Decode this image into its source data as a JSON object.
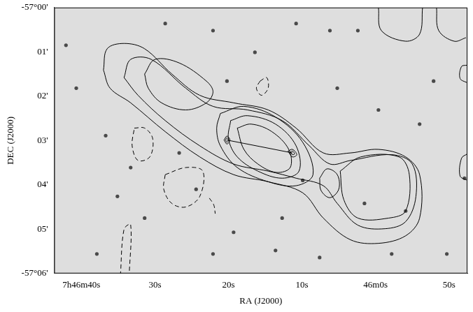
{
  "chart_data": {
    "type": "scatter",
    "x_label": "RA (J2000)",
    "y_label": "DEC (J2000)",
    "xlim": [
      103.7,
      47.5
    ],
    "xticks": [
      {
        "value": 100,
        "label": "7h46m40s"
      },
      {
        "value": 90,
        "label": "30s"
      },
      {
        "value": 80,
        "label": "20s"
      },
      {
        "value": 70,
        "label": "10s"
      },
      {
        "value": 60,
        "label": "46m0s"
      },
      {
        "value": 50,
        "label": "50s"
      }
    ],
    "ylim": [
      6,
      0
    ],
    "yticks": [
      {
        "value": 0,
        "label": "-57°00'"
      },
      {
        "value": 1,
        "label": "01'"
      },
      {
        "value": 2,
        "label": "02'"
      },
      {
        "value": 3,
        "label": "03'"
      },
      {
        "value": 4,
        "label": "04'"
      },
      {
        "value": 5,
        "label": "05'"
      },
      {
        "value": 6,
        "label": "-57°06'"
      }
    ],
    "grid": false,
    "series": [
      {
        "type": "scatter",
        "marker": "circle",
        "color": "#4a4a4a",
        "points": [
          [
            95.1,
            4.26
          ],
          [
            96.7,
            2.89
          ],
          [
            62.4,
            0.52
          ],
          [
            69.9,
            3.9
          ],
          [
            47.9,
            3.85
          ],
          [
            80.2,
            1.66
          ],
          [
            84.4,
            4.1
          ],
          [
            79.3,
            5.07
          ],
          [
            55.9,
            4.59
          ],
          [
            67.6,
            5.64
          ],
          [
            54.0,
            2.63
          ],
          [
            86.7,
            3.28
          ],
          [
            91.4,
            4.75
          ],
          [
            73.6,
            5.48
          ],
          [
            65.2,
            1.82
          ],
          [
            59.6,
            2.31
          ],
          [
            97.9,
            5.56
          ],
          [
            70.8,
            0.36
          ],
          [
            82.1,
            0.52
          ],
          [
            88.6,
            0.36
          ],
          [
            100.7,
            1.82
          ],
          [
            52.1,
            1.66
          ],
          [
            50.3,
            5.56
          ],
          [
            76.4,
            1.01
          ],
          [
            57.8,
            5.56
          ],
          [
            66.2,
            0.52
          ],
          [
            93.3,
            3.61
          ],
          [
            102.1,
            0.85
          ],
          [
            61.5,
            4.42
          ],
          [
            72.7,
            4.75
          ],
          [
            82.1,
            5.56
          ]
        ]
      },
      {
        "type": "line",
        "line_style": "solid",
        "color": "#000000",
        "points": [
          [
            97.0,
            1.41
          ],
          [
            96.5,
            0.93
          ],
          [
            94.2,
            0.81
          ],
          [
            91.4,
            0.93
          ],
          [
            87.7,
            1.5
          ],
          [
            83.9,
            1.98
          ],
          [
            79.3,
            2.15
          ],
          [
            74.6,
            2.31
          ],
          [
            70.8,
            2.72
          ],
          [
            67.1,
            3.28
          ],
          [
            63.4,
            3.28
          ],
          [
            59.6,
            3.2
          ],
          [
            55.9,
            3.37
          ],
          [
            54.0,
            3.77
          ],
          [
            54.0,
            4.75
          ],
          [
            55.9,
            5.15
          ],
          [
            59.6,
            5.32
          ],
          [
            63.4,
            5.24
          ],
          [
            67.1,
            4.75
          ],
          [
            69.9,
            4.18
          ],
          [
            74.6,
            3.93
          ],
          [
            79.3,
            3.77
          ],
          [
            83.9,
            3.37
          ],
          [
            88.6,
            2.8
          ],
          [
            93.3,
            2.15
          ],
          [
            96.1,
            1.82
          ],
          [
            97.0,
            1.41
          ]
        ]
      },
      {
        "type": "line",
        "line_style": "solid",
        "color": "#000000",
        "points": [
          [
            94.2,
            1.58
          ],
          [
            93.3,
            1.17
          ],
          [
            90.5,
            1.17
          ],
          [
            85.8,
            1.82
          ],
          [
            82.1,
            2.23
          ],
          [
            77.4,
            2.31
          ],
          [
            72.7,
            2.55
          ],
          [
            69.0,
            3.12
          ],
          [
            66.2,
            3.53
          ],
          [
            63.4,
            3.45
          ],
          [
            57.8,
            3.32
          ],
          [
            55.0,
            3.53
          ],
          [
            54.5,
            4.26
          ],
          [
            55.9,
            4.83
          ],
          [
            58.7,
            4.99
          ],
          [
            62.4,
            4.91
          ],
          [
            65.2,
            4.42
          ],
          [
            67.1,
            4.02
          ],
          [
            70.8,
            3.85
          ],
          [
            74.6,
            3.69
          ],
          [
            79.3,
            3.53
          ],
          [
            83.9,
            3.12
          ],
          [
            88.6,
            2.55
          ],
          [
            92.3,
            1.98
          ],
          [
            94.2,
            1.58
          ]
        ]
      },
      {
        "type": "line",
        "line_style": "solid",
        "color": "#000000",
        "points": [
          [
            91.4,
            1.5
          ],
          [
            90.0,
            1.17
          ],
          [
            86.7,
            1.25
          ],
          [
            83.0,
            1.66
          ],
          [
            82.1,
            1.9
          ],
          [
            83.0,
            2.15
          ],
          [
            85.8,
            2.31
          ],
          [
            89.1,
            2.15
          ],
          [
            90.9,
            1.82
          ],
          [
            91.4,
            1.5
          ]
        ]
      },
      {
        "type": "line",
        "line_style": "solid",
        "color": "#000000",
        "points": [
          [
            81.1,
            2.39
          ],
          [
            77.9,
            2.23
          ],
          [
            73.6,
            2.47
          ],
          [
            69.9,
            3.04
          ],
          [
            68.5,
            3.77
          ],
          [
            70.8,
            4.02
          ],
          [
            74.6,
            3.93
          ],
          [
            78.8,
            3.61
          ],
          [
            81.1,
            3.12
          ],
          [
            81.6,
            2.72
          ],
          [
            81.1,
            2.39
          ]
        ]
      },
      {
        "type": "line",
        "line_style": "solid",
        "color": "#000000",
        "points": [
          [
            64.8,
            3.69
          ],
          [
            62.0,
            3.37
          ],
          [
            56.8,
            3.37
          ],
          [
            55.4,
            3.77
          ],
          [
            55.9,
            4.59
          ],
          [
            58.2,
            4.75
          ],
          [
            62.4,
            4.75
          ],
          [
            64.3,
            4.34
          ],
          [
            64.8,
            3.69
          ]
        ]
      },
      {
        "type": "line",
        "line_style": "solid",
        "color": "#000000",
        "points": [
          [
            67.6,
            3.85
          ],
          [
            66.6,
            3.64
          ],
          [
            65.2,
            3.77
          ],
          [
            65.0,
            4.1
          ],
          [
            66.2,
            4.29
          ],
          [
            67.4,
            4.13
          ],
          [
            67.6,
            3.85
          ]
        ]
      },
      {
        "type": "line",
        "line_style": "solid",
        "color": "#000000",
        "points": [
          [
            79.7,
            2.55
          ],
          [
            77.4,
            2.44
          ],
          [
            73.6,
            2.63
          ],
          [
            70.8,
            3.12
          ],
          [
            70.4,
            3.69
          ],
          [
            72.7,
            3.85
          ],
          [
            76.0,
            3.69
          ],
          [
            78.8,
            3.37
          ],
          [
            80.0,
            2.96
          ],
          [
            79.7,
            2.55
          ]
        ]
      },
      {
        "type": "line",
        "line_style": "solid",
        "color": "#000000",
        "points": [
          [
            78.8,
            2.72
          ],
          [
            76.9,
            2.63
          ],
          [
            74.1,
            2.8
          ],
          [
            71.8,
            3.2
          ],
          [
            71.6,
            3.61
          ],
          [
            73.5,
            3.72
          ],
          [
            76.0,
            3.53
          ],
          [
            77.9,
            3.2
          ],
          [
            78.8,
            2.72
          ]
        ]
      },
      {
        "type": "line",
        "line_style": "solid",
        "color": "#000000",
        "points": [
          [
            80.6,
            2.99
          ],
          [
            80.2,
            2.9
          ],
          [
            79.8,
            2.99
          ],
          [
            80.2,
            3.08
          ],
          [
            80.6,
            2.99
          ]
        ]
      },
      {
        "type": "line",
        "line_style": "solid",
        "color": "#000000",
        "points": [
          [
            80.4,
            2.99
          ],
          [
            80.2,
            2.94
          ],
          [
            80.0,
            2.99
          ],
          [
            80.2,
            3.04
          ],
          [
            80.4,
            2.99
          ]
        ]
      },
      {
        "type": "line",
        "line_style": "solid",
        "color": "#000000",
        "points": [
          [
            71.9,
            3.24
          ],
          [
            71.3,
            3.2
          ],
          [
            70.7,
            3.32
          ],
          [
            71.3,
            3.37
          ],
          [
            71.9,
            3.24
          ]
        ]
      },
      {
        "type": "line",
        "line_style": "solid",
        "color": "#000000",
        "points": [
          [
            71.6,
            3.26
          ],
          [
            71.3,
            3.24
          ],
          [
            71.0,
            3.3
          ],
          [
            71.3,
            3.32
          ],
          [
            71.6,
            3.26
          ]
        ]
      },
      {
        "type": "line",
        "line_style": "solid",
        "color": "#000000",
        "points": [
          [
            80.2,
            2.99
          ],
          [
            71.3,
            3.28
          ]
        ]
      },
      {
        "type": "line",
        "line_style": "solid",
        "color": "#000000",
        "points": [
          [
            59.6,
            0
          ],
          [
            59.2,
            0.52
          ],
          [
            55.9,
            0.76
          ],
          [
            54.0,
            0.6
          ],
          [
            53.6,
            0
          ]
        ]
      },
      {
        "type": "line",
        "line_style": "solid",
        "color": "#000000",
        "points": [
          [
            51.7,
            0
          ],
          [
            51.4,
            0.52
          ],
          [
            49.3,
            0.76
          ],
          [
            47.7,
            0.68
          ]
        ]
      },
      {
        "type": "line",
        "line_style": "solid",
        "color": "#000000",
        "points": [
          [
            47.5,
            1.3
          ],
          [
            48.3,
            1.33
          ],
          [
            48.5,
            1.6
          ],
          [
            47.5,
            1.7
          ]
        ]
      },
      {
        "type": "line",
        "line_style": "solid",
        "color": "#000000",
        "points": [
          [
            47.5,
            3.3
          ],
          [
            48.3,
            3.4
          ],
          [
            48.5,
            3.8
          ],
          [
            47.5,
            3.9
          ]
        ]
      },
      {
        "type": "line",
        "line_style": "dashed",
        "color": "#000000",
        "points": [
          [
            92.8,
            2.72
          ],
          [
            91.4,
            2.72
          ],
          [
            90.3,
            2.96
          ],
          [
            90.7,
            3.37
          ],
          [
            92.3,
            3.45
          ],
          [
            93.1,
            3.12
          ],
          [
            92.8,
            2.72
          ]
        ]
      },
      {
        "type": "line",
        "line_style": "dashed",
        "color": "#000000",
        "points": [
          [
            88.6,
            3.77
          ],
          [
            85.8,
            3.61
          ],
          [
            83.5,
            3.69
          ],
          [
            83.9,
            4.26
          ],
          [
            85.8,
            4.5
          ],
          [
            87.7,
            4.42
          ],
          [
            88.8,
            4.1
          ],
          [
            88.6,
            3.77
          ]
        ]
      },
      {
        "type": "line",
        "line_style": "dashed",
        "color": "#000000",
        "points": [
          [
            75.7,
            1.66
          ],
          [
            74.8,
            1.58
          ],
          [
            74.6,
            1.82
          ],
          [
            75.5,
            1.98
          ],
          [
            76.2,
            1.82
          ],
          [
            75.7,
            1.66
          ]
        ]
      },
      {
        "type": "line",
        "line_style": "dashed",
        "color": "#000000",
        "points": [
          [
            94.7,
            6.05
          ],
          [
            94.2,
            5.0
          ],
          [
            93.3,
            4.9
          ],
          [
            93.5,
            6.05
          ]
        ]
      },
      {
        "type": "line",
        "line_style": "dashed",
        "color": "#000000",
        "points": [
          [
            82.6,
            4.3
          ],
          [
            82.0,
            4.45
          ],
          [
            81.8,
            4.65
          ]
        ]
      }
    ]
  }
}
